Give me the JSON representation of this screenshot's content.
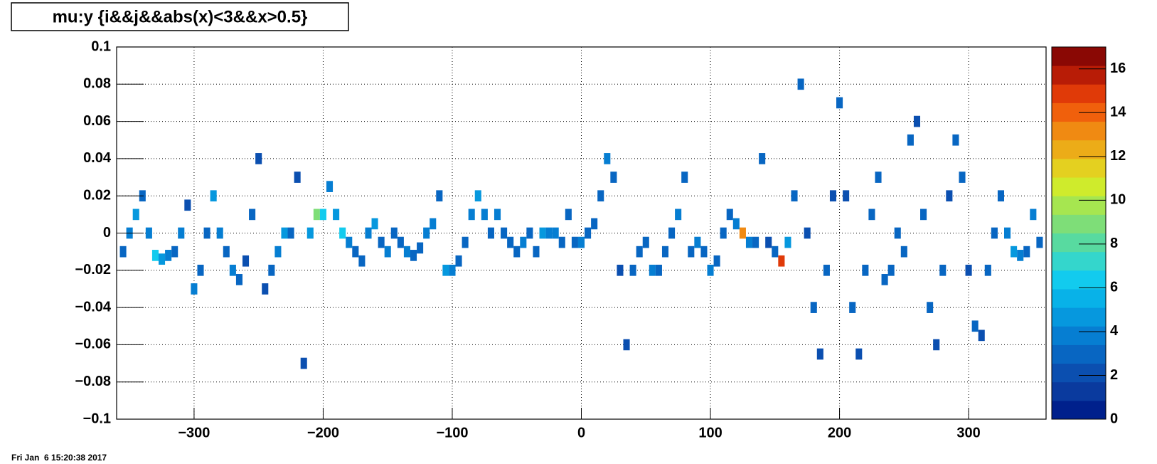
{
  "chart_data": {
    "type": "heatmap",
    "title": "mu:y {i&&j&&abs(x)<3&&x>0.5}",
    "date": "Fri Jan  6 15:20:38 2017",
    "xlim": [
      -360,
      360
    ],
    "ylim": [
      -0.1,
      0.1
    ],
    "zlim": [
      0,
      17
    ],
    "xticks": [
      {
        "value": -300,
        "label": "−300"
      },
      {
        "value": -200,
        "label": "−200"
      },
      {
        "value": -100,
        "label": "−100"
      },
      0,
      100,
      200,
      300
    ],
    "yticks": [
      {
        "value": -0.1,
        "label": "−0.1"
      },
      {
        "value": -0.08,
        "label": "−0.08"
      },
      {
        "value": -0.06,
        "label": "−0.06"
      },
      {
        "value": -0.04,
        "label": "−0.04"
      },
      {
        "value": -0.02,
        "label": "−0.02"
      },
      0,
      0.02,
      0.04,
      0.06,
      0.08,
      0.1
    ],
    "zticks": [
      0,
      2,
      4,
      6,
      8,
      10,
      12,
      14,
      16
    ],
    "grid": true,
    "xbin": 5,
    "ybin": 0.006,
    "palette": [
      "#00208c",
      "#0a3a9e",
      "#0b4fb0",
      "#0866c2",
      "#067ed2",
      "#0698de",
      "#08b2e8",
      "#12cbee",
      "#34d6cc",
      "#58daa0",
      "#7ede78",
      "#a6e650",
      "#cfeb2c",
      "#e4d020",
      "#ecac18",
      "#f08a12",
      "#f0600c",
      "#e03a08",
      "#b81c06",
      "#8a0804"
    ],
    "x": [
      -355,
      -350,
      -345,
      -340,
      -335,
      -330,
      -325,
      -320,
      -315,
      -310,
      -305,
      -300,
      -295,
      -290,
      -285,
      -280,
      -275,
      -270,
      -265,
      -260,
      -255,
      -250,
      -245,
      -240,
      -235,
      -230,
      -225,
      -220,
      -215,
      -210,
      -205,
      -200,
      -195,
      -190,
      -185,
      -180,
      -175,
      -170,
      -165,
      -160,
      -155,
      -150,
      -145,
      -140,
      -135,
      -130,
      -125,
      -120,
      -115,
      -110,
      -105,
      -100,
      -95,
      -90,
      -85,
      -80,
      -75,
      -70,
      -65,
      -60,
      -55,
      -50,
      -45,
      -40,
      -35,
      -30,
      -25,
      -20,
      -15,
      -10,
      -5,
      0,
      5,
      10,
      15,
      20,
      25,
      30,
      35,
      40,
      45,
      50,
      55,
      60,
      65,
      70,
      75,
      80,
      85,
      90,
      95,
      100,
      105,
      110,
      115,
      120,
      125,
      130,
      135,
      140,
      145,
      150,
      155,
      160,
      165,
      170,
      175,
      180,
      185,
      190,
      195,
      200,
      205,
      210,
      215,
      220,
      225,
      230,
      235,
      240,
      245,
      250,
      255,
      260,
      265,
      270,
      275,
      280,
      285,
      290,
      295,
      300,
      305,
      310,
      315,
      320,
      325,
      330,
      335,
      340,
      345,
      350,
      355
    ],
    "y": [
      -0.01,
      0.0,
      0.01,
      0.02,
      0.0,
      -0.012,
      -0.014,
      -0.012,
      -0.01,
      0.0,
      0.015,
      -0.03,
      -0.02,
      0.0,
      0.02,
      0.0,
      -0.01,
      -0.02,
      -0.025,
      -0.015,
      0.01,
      0.04,
      -0.03,
      -0.02,
      -0.01,
      0.0,
      0.0,
      0.03,
      -0.07,
      0.0,
      0.01,
      0.01,
      0.025,
      0.01,
      0.0,
      -0.005,
      -0.01,
      -0.015,
      0.0,
      0.005,
      -0.005,
      -0.01,
      0.0,
      -0.005,
      -0.01,
      -0.012,
      -0.008,
      0.0,
      0.005,
      0.02,
      -0.02,
      -0.02,
      -0.015,
      -0.005,
      0.01,
      0.02,
      0.01,
      0.0,
      0.01,
      0.0,
      -0.005,
      -0.01,
      -0.005,
      0.0,
      -0.01,
      0.0,
      0.0,
      0.0,
      -0.005,
      0.01,
      -0.005,
      -0.005,
      0.0,
      0.005,
      0.02,
      0.04,
      0.03,
      -0.02,
      -0.06,
      -0.02,
      -0.01,
      -0.005,
      -0.02,
      -0.02,
      -0.01,
      0.0,
      0.01,
      0.03,
      -0.01,
      -0.005,
      -0.01,
      -0.02,
      -0.015,
      0.0,
      0.01,
      0.005,
      0.0,
      -0.005,
      -0.005,
      0.04,
      -0.005,
      -0.01,
      -0.015,
      -0.005,
      0.02,
      0.08,
      0.0,
      -0.04,
      -0.065,
      -0.02,
      0.02,
      0.07,
      0.02,
      -0.04,
      -0.065,
      -0.02,
      0.01,
      0.03,
      -0.025,
      -0.02,
      0.0,
      -0.01,
      0.05,
      0.06,
      0.01,
      -0.04,
      -0.06,
      -0.02,
      0.02,
      0.05,
      0.03,
      -0.02,
      -0.05,
      -0.055,
      -0.02,
      0.0,
      0.02,
      0.0,
      -0.01,
      -0.012,
      -0.01,
      0.01,
      -0.005
    ],
    "values": [
      3,
      4,
      5,
      3,
      4,
      6,
      5,
      4,
      3,
      4,
      2,
      4,
      3,
      3,
      5,
      4,
      3,
      4,
      3,
      2,
      3,
      2,
      2,
      3,
      4,
      5,
      3,
      2,
      2,
      5,
      9,
      6,
      4,
      5,
      6,
      4,
      3,
      3,
      4,
      5,
      3,
      4,
      3,
      3,
      4,
      3,
      3,
      4,
      4,
      3,
      5,
      4,
      3,
      3,
      4,
      5,
      4,
      3,
      4,
      3,
      3,
      3,
      4,
      3,
      3,
      5,
      4,
      4,
      3,
      3,
      3,
      4,
      3,
      3,
      3,
      4,
      3,
      2,
      2,
      3,
      3,
      3,
      4,
      3,
      3,
      3,
      4,
      3,
      3,
      4,
      3,
      4,
      3,
      3,
      3,
      4,
      13,
      4,
      3,
      3,
      2,
      3,
      15,
      5,
      3,
      3,
      2,
      3,
      2,
      3,
      2,
      3,
      2,
      3,
      2,
      3,
      3,
      3,
      3,
      3,
      3,
      3,
      3,
      2,
      3,
      3,
      2,
      3,
      2,
      3,
      3,
      2,
      3,
      2,
      3,
      3,
      3,
      4,
      5,
      4,
      3,
      4,
      3
    ]
  }
}
